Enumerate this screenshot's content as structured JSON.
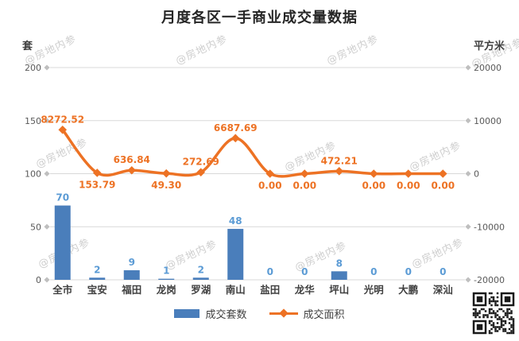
{
  "chart_data": {
    "type": "combo",
    "title": "月度各区一手商业成交量数据",
    "categories": [
      "全市",
      "宝安",
      "福田",
      "龙岗",
      "罗湖",
      "南山",
      "盐田",
      "龙华",
      "坪山",
      "光明",
      "大鹏",
      "深汕"
    ],
    "series": [
      {
        "name": "成交套数",
        "type": "bar",
        "axis": "left",
        "values": [
          70,
          2,
          9,
          1,
          2,
          48,
          0,
          0,
          8,
          0,
          0,
          0
        ],
        "labels": [
          "70",
          "2",
          "9",
          "1",
          "2",
          "48",
          "0",
          "0",
          "8",
          "0",
          "0",
          "0"
        ]
      },
      {
        "name": "成交面积",
        "type": "line",
        "axis": "right",
        "values": [
          8272.52,
          153.79,
          636.84,
          49.3,
          272.69,
          6687.69,
          0,
          0,
          472.21,
          0,
          0,
          0
        ],
        "labels": [
          "8272.52",
          "153.79",
          "636.84",
          "49.30",
          "272.69",
          "6687.69",
          "0.00",
          "0.00",
          "472.21",
          "0.00",
          "0.00",
          "0.00"
        ],
        "label_pos": [
          "above",
          "below",
          "above",
          "below",
          "above",
          "above",
          "below",
          "below",
          "above",
          "below",
          "below",
          "below"
        ]
      }
    ],
    "left_axis": {
      "unit": "套",
      "min": 0,
      "max": 200,
      "ticks": [
        "200",
        "150",
        "100",
        "50",
        "0"
      ]
    },
    "right_axis": {
      "unit": "平方米",
      "min": -20000,
      "max": 20000,
      "ticks": [
        "20000",
        "10000",
        "0",
        "-10000",
        "-20000"
      ]
    },
    "grid": true,
    "legend_position": "bottom",
    "smooth_line": true
  },
  "colors": {
    "bar": "#4a7ebb",
    "bar_label": "#5b9bd5",
    "line": "#ed7224",
    "line_label": "#ed7224",
    "gridline": "#d9d9d9",
    "grid_cap": "#bfbfbf",
    "tick_text": "#595959",
    "category_text": "#404040",
    "title_text": "#262626",
    "qr_dark": "#1a1a1a"
  },
  "watermark": {
    "text": "@房地内参"
  },
  "icons": {
    "qr_code": "qr-code-image"
  }
}
